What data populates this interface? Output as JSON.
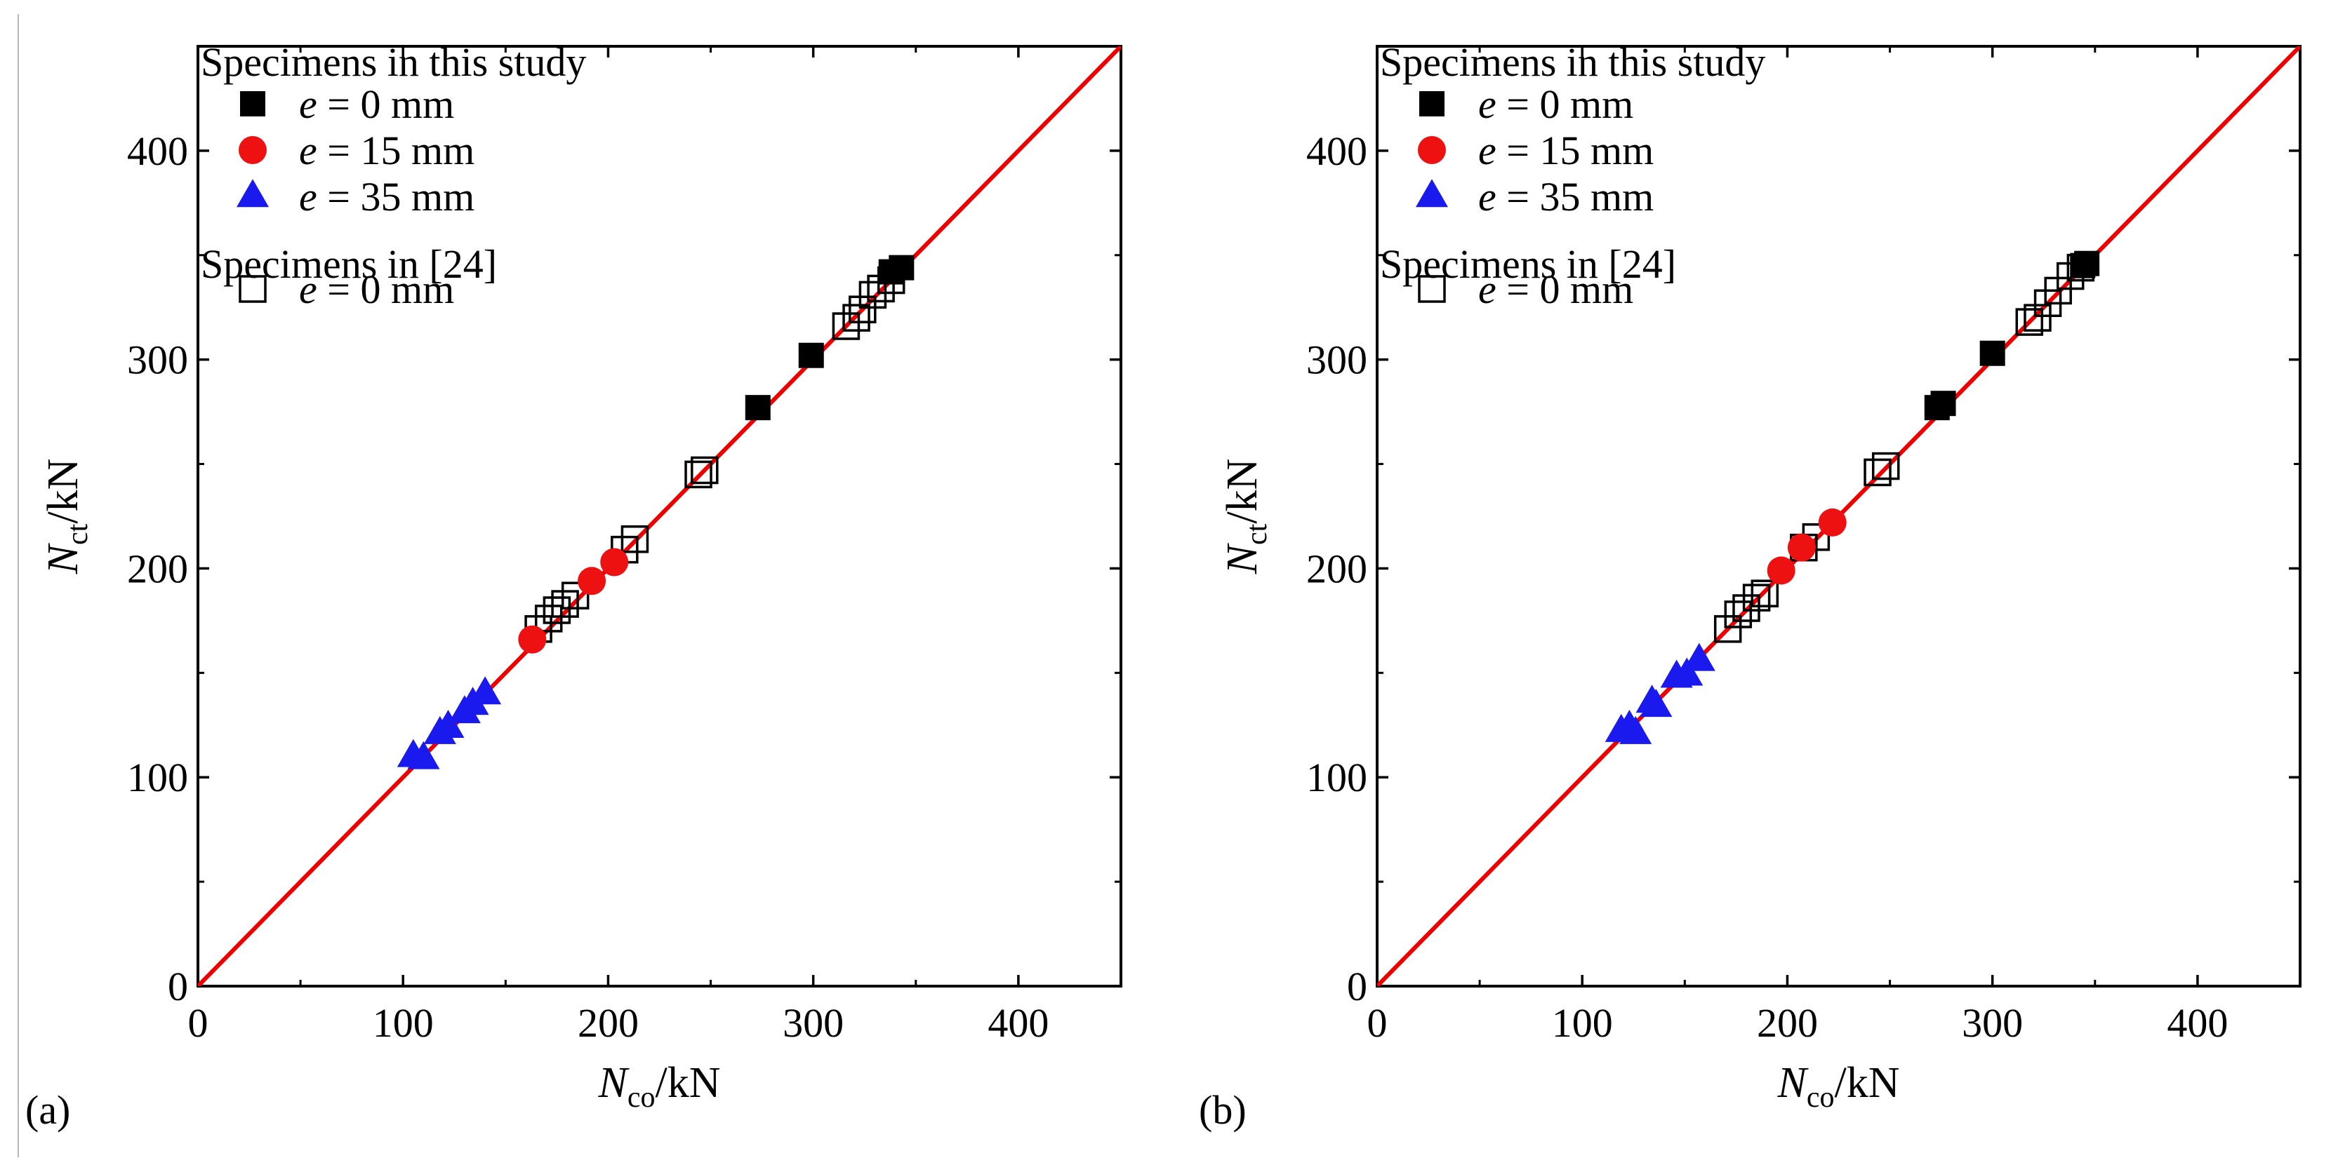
{
  "figure": {
    "colors": {
      "axis": "#000000",
      "reference_line": "#ee0000",
      "e0": "#000000",
      "e15": "#ee1111",
      "e35": "#1a1aee",
      "hollow": "#000000"
    }
  },
  "chart_data": [
    {
      "panel_label": "(a)",
      "type": "scatter",
      "xlabel": {
        "symbol": "N",
        "subscript": "co",
        "unit": "/kN"
      },
      "ylabel": {
        "symbol": "N",
        "subscript": "ct",
        "unit": "/kN"
      },
      "xlim": [
        0,
        450
      ],
      "ylim": [
        0,
        450
      ],
      "x_ticks": [
        0,
        100,
        200,
        300,
        400
      ],
      "y_ticks": [
        0,
        100,
        200,
        300,
        400
      ],
      "reference_line": {
        "from": [
          0,
          0
        ],
        "to": [
          450,
          450
        ]
      },
      "legend": {
        "placement": "top-left",
        "group1_title": "Specimens in this study",
        "group2_title": "Specimens in [24]",
        "entries": [
          {
            "series": "e0",
            "var": "e",
            "text": " = 0 mm"
          },
          {
            "series": "e15",
            "var": "e",
            "text": " = 15 mm"
          },
          {
            "series": "e35",
            "var": "e",
            "text": " = 35 mm"
          },
          {
            "series": "hollow",
            "var": "e",
            "text": " = 0 mm"
          }
        ]
      },
      "series": [
        {
          "id": "e0",
          "name": "e = 0 mm (this study)",
          "marker": "filled-square",
          "points": [
            [
              273,
              277
            ],
            [
              299,
              302
            ],
            [
              338,
              342
            ],
            [
              343,
              344
            ]
          ]
        },
        {
          "id": "e15",
          "name": "e = 15 mm (this study)",
          "marker": "filled-circle",
          "points": [
            [
              163,
              166
            ],
            [
              192,
              194
            ],
            [
              203,
              203
            ]
          ]
        },
        {
          "id": "e35",
          "name": "e = 35 mm (this study)",
          "marker": "filled-triangle",
          "points": [
            [
              105,
              110
            ],
            [
              110,
              109
            ],
            [
              118,
              121
            ],
            [
              122,
              124
            ],
            [
              130,
              131
            ],
            [
              134,
              135
            ],
            [
              140,
              140
            ]
          ]
        },
        {
          "id": "hollow",
          "name": "e = 0 mm (specimens in [24])",
          "marker": "hollow-square",
          "points": [
            [
              166,
              171
            ],
            [
              171,
              176
            ],
            [
              175,
              180
            ],
            [
              179,
              183
            ],
            [
              184,
              187
            ],
            [
              208,
              209
            ],
            [
              213,
              214
            ],
            [
              244,
              245
            ],
            [
              247,
              247
            ],
            [
              316,
              316
            ],
            [
              321,
              320
            ],
            [
              324,
              324
            ],
            [
              329,
              331
            ],
            [
              333,
              334
            ],
            [
              338,
              338
            ]
          ]
        }
      ]
    },
    {
      "panel_label": "(b)",
      "type": "scatter",
      "xlabel": {
        "symbol": "N",
        "subscript": "co",
        "unit": "/kN"
      },
      "ylabel": {
        "symbol": "N",
        "subscript": "ct",
        "unit": "/kN"
      },
      "xlim": [
        0,
        450
      ],
      "ylim": [
        0,
        450
      ],
      "x_ticks": [
        0,
        100,
        200,
        300,
        400
      ],
      "y_ticks": [
        0,
        100,
        200,
        300,
        400
      ],
      "reference_line": {
        "from": [
          0,
          0
        ],
        "to": [
          450,
          450
        ]
      },
      "legend": {
        "placement": "top-left",
        "group1_title": "Specimens in this study",
        "group2_title": "Specimens in [24]",
        "entries": [
          {
            "series": "e0",
            "var": "e",
            "text": " = 0 mm"
          },
          {
            "series": "e15",
            "var": "e",
            "text": " = 15 mm"
          },
          {
            "series": "e35",
            "var": "e",
            "text": " = 35 mm"
          },
          {
            "series": "hollow",
            "var": "e",
            "text": " = 0 mm"
          }
        ]
      },
      "series": [
        {
          "id": "e0",
          "name": "e = 0 mm (this study)",
          "marker": "filled-square",
          "points": [
            [
              273,
              277
            ],
            [
              276,
              279
            ],
            [
              300,
              303
            ],
            [
              344,
              345
            ],
            [
              346,
              346
            ]
          ]
        },
        {
          "id": "e15",
          "name": "e = 15 mm (this study)",
          "marker": "filled-circle",
          "points": [
            [
              197,
              199
            ],
            [
              207,
              210
            ],
            [
              222,
              222
            ]
          ]
        },
        {
          "id": "e35",
          "name": "e = 35 mm (this study)",
          "marker": "filled-triangle",
          "points": [
            [
              119,
              122
            ],
            [
              123,
              124
            ],
            [
              126,
              121
            ],
            [
              134,
              136
            ],
            [
              136,
              134
            ],
            [
              146,
              148
            ],
            [
              151,
              149
            ],
            [
              157,
              156
            ]
          ]
        },
        {
          "id": "hollow",
          "name": "e = 0 mm (specimens in [24])",
          "marker": "hollow-square",
          "points": [
            [
              171,
              171
            ],
            [
              176,
              178
            ],
            [
              180,
              181
            ],
            [
              185,
              186
            ],
            [
              189,
              188
            ],
            [
              208,
              210
            ],
            [
              214,
              215
            ],
            [
              244,
              246
            ],
            [
              248,
              249
            ],
            [
              318,
              318
            ],
            [
              322,
              320
            ],
            [
              327,
              327
            ],
            [
              332,
              333
            ],
            [
              338,
              340
            ],
            [
              343,
              344
            ]
          ]
        }
      ]
    }
  ]
}
